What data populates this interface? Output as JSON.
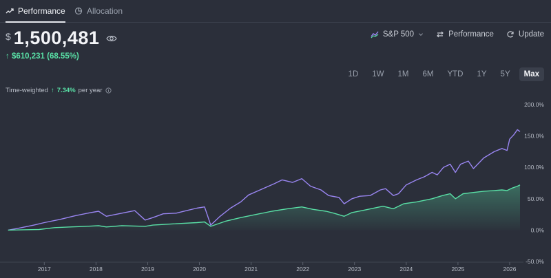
{
  "tabs": [
    {
      "label": "Performance",
      "icon": "trend-icon"
    },
    {
      "label": "Allocation",
      "icon": "pie-icon"
    }
  ],
  "balance": {
    "currency": "$",
    "amount": "1,500,481"
  },
  "change": {
    "arrow": "↑",
    "text": "$610,231 (68.55%)"
  },
  "controls": {
    "benchmark": "S&P 500",
    "performance": "Performance",
    "update": "Update"
  },
  "ranges": [
    "1D",
    "1W",
    "1M",
    "6M",
    "YTD",
    "1Y",
    "5Y",
    "Max"
  ],
  "selected_range": "Max",
  "time_weighted": {
    "label": "Time-weighted",
    "arrow": "↑",
    "value": "7.34%",
    "suffix": "per year"
  },
  "colors": {
    "portfolio": "#59e0a6",
    "benchmark": "#9a86f2",
    "background": "#2b2f3a"
  },
  "chart_data": {
    "type": "line",
    "y_ticks": [
      "200.0%",
      "150.0%",
      "100.0%",
      "50.0%",
      "0.0%",
      "-50.0%"
    ],
    "x_ticks": [
      "2017",
      "2018",
      "2019",
      "2020",
      "2021",
      "2022",
      "2023",
      "2024",
      "2025",
      "2026"
    ],
    "ylim": [
      -50,
      200
    ],
    "xlim": [
      2016.25,
      2026.2
    ],
    "series": [
      {
        "color": "#9a86f2",
        "points": [
          [
            2016.3,
            0
          ],
          [
            2016.5,
            3
          ],
          [
            2016.8,
            8
          ],
          [
            2017.0,
            12
          ],
          [
            2017.3,
            17
          ],
          [
            2017.6,
            23
          ],
          [
            2017.9,
            28
          ],
          [
            2018.05,
            30
          ],
          [
            2018.2,
            22
          ],
          [
            2018.5,
            27
          ],
          [
            2018.75,
            31
          ],
          [
            2018.95,
            16
          ],
          [
            2019.1,
            20
          ],
          [
            2019.3,
            26
          ],
          [
            2019.55,
            27
          ],
          [
            2019.75,
            31
          ],
          [
            2019.95,
            35
          ],
          [
            2020.1,
            37
          ],
          [
            2020.22,
            8
          ],
          [
            2020.4,
            22
          ],
          [
            2020.6,
            35
          ],
          [
            2020.8,
            45
          ],
          [
            2020.95,
            56
          ],
          [
            2021.2,
            65
          ],
          [
            2021.45,
            74
          ],
          [
            2021.6,
            80
          ],
          [
            2021.8,
            76
          ],
          [
            2021.98,
            82
          ],
          [
            2022.15,
            70
          ],
          [
            2022.35,
            64
          ],
          [
            2022.5,
            55
          ],
          [
            2022.7,
            52
          ],
          [
            2022.8,
            42
          ],
          [
            2022.95,
            50
          ],
          [
            2023.1,
            54
          ],
          [
            2023.3,
            55
          ],
          [
            2023.5,
            64
          ],
          [
            2023.6,
            66
          ],
          [
            2023.75,
            55
          ],
          [
            2023.85,
            58
          ],
          [
            2024.0,
            72
          ],
          [
            2024.2,
            80
          ],
          [
            2024.35,
            85
          ],
          [
            2024.5,
            92
          ],
          [
            2024.6,
            88
          ],
          [
            2024.72,
            100
          ],
          [
            2024.85,
            105
          ],
          [
            2024.95,
            92
          ],
          [
            2025.05,
            105
          ],
          [
            2025.2,
            110
          ],
          [
            2025.3,
            98
          ],
          [
            2025.5,
            115
          ],
          [
            2025.7,
            125
          ],
          [
            2025.85,
            130
          ],
          [
            2025.95,
            127
          ],
          [
            2026.0,
            145
          ],
          [
            2026.08,
            152
          ],
          [
            2026.15,
            160
          ],
          [
            2026.2,
            157
          ]
        ]
      },
      {
        "color": "#59e0a6",
        "points": [
          [
            2016.3,
            0
          ],
          [
            2016.6,
            0.5
          ],
          [
            2016.9,
            1
          ],
          [
            2017.2,
            4
          ],
          [
            2017.5,
            5
          ],
          [
            2017.8,
            6
          ],
          [
            2018.05,
            7
          ],
          [
            2018.2,
            5
          ],
          [
            2018.5,
            7
          ],
          [
            2018.95,
            6
          ],
          [
            2019.1,
            8
          ],
          [
            2019.5,
            10
          ],
          [
            2019.95,
            12
          ],
          [
            2020.1,
            13
          ],
          [
            2020.22,
            6
          ],
          [
            2020.5,
            14
          ],
          [
            2020.8,
            20
          ],
          [
            2021.1,
            25
          ],
          [
            2021.4,
            30
          ],
          [
            2021.7,
            34
          ],
          [
            2021.98,
            37
          ],
          [
            2022.2,
            33
          ],
          [
            2022.45,
            30
          ],
          [
            2022.6,
            27
          ],
          [
            2022.8,
            22
          ],
          [
            2022.95,
            28
          ],
          [
            2023.2,
            32
          ],
          [
            2023.55,
            38
          ],
          [
            2023.75,
            34
          ],
          [
            2023.95,
            42
          ],
          [
            2024.2,
            45
          ],
          [
            2024.5,
            50
          ],
          [
            2024.7,
            55
          ],
          [
            2024.85,
            58
          ],
          [
            2024.95,
            50
          ],
          [
            2025.1,
            58
          ],
          [
            2025.3,
            60
          ],
          [
            2025.5,
            62
          ],
          [
            2025.7,
            63
          ],
          [
            2025.85,
            64
          ],
          [
            2025.95,
            63
          ],
          [
            2026.05,
            67
          ],
          [
            2026.15,
            70
          ],
          [
            2026.2,
            72
          ]
        ]
      }
    ]
  }
}
